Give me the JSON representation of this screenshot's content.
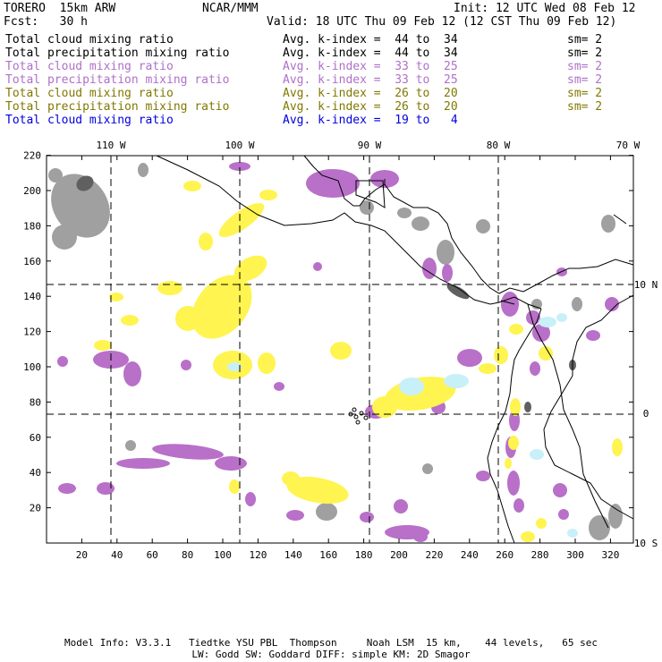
{
  "header": {
    "model": "TORERO  15km ARW",
    "org": "NCAR/MMM",
    "init": "Init: 12 UTC Wed 08 Feb 12",
    "fcst": "Fcst:   30 h",
    "valid": "Valid: 18 UTC Thu 09 Feb 12 (12 CST Thu 09 Feb 12)"
  },
  "legend": [
    {
      "field": "Total cloud mixing ratio",
      "avg": "Avg. k-index =  44 to  34",
      "sm": "sm= 2",
      "color": "#000000"
    },
    {
      "field": "Total precipitation mixing ratio",
      "avg": "Avg. k-index =  44 to  34",
      "sm": "sm= 2",
      "color": "#000000"
    },
    {
      "field": "Total cloud mixing ratio",
      "avg": "Avg. k-index =  33 to  25",
      "sm": "sm= 2",
      "color": "#b070c8"
    },
    {
      "field": "Total precipitation mixing ratio",
      "avg": "Avg. k-index =  33 to  25",
      "sm": "sm= 2",
      "color": "#b070c8"
    },
    {
      "field": "Total cloud mixing ratio",
      "avg": "Avg. k-index =  26 to  20",
      "sm": "sm= 2",
      "color": "#807800"
    },
    {
      "field": "Total precipitation mixing ratio",
      "avg": "Avg. k-index =  26 to  20",
      "sm": "sm= 2",
      "color": "#807800"
    },
    {
      "field": "Total cloud mixing ratio",
      "avg": "Avg. k-index =  19 to   4",
      "sm": "",
      "color": "#0000e0"
    }
  ],
  "map": {
    "lon_labels": [
      "110 W",
      "100 W",
      "90 W",
      "80 W",
      "70 W"
    ],
    "lat_labels": [
      "10 N",
      "0",
      "10 S"
    ],
    "x_ticks": [
      "20",
      "40",
      "60",
      "80",
      "100",
      "120",
      "140",
      "160",
      "180",
      "200",
      "220",
      "240",
      "260",
      "280",
      "300",
      "320"
    ],
    "y_ticks": [
      "20",
      "40",
      "60",
      "80",
      "100",
      "120",
      "140",
      "160",
      "180",
      "200",
      "220"
    ],
    "colors": {
      "gray": "#a0a0a0",
      "dark": "#606060",
      "purple": "#b870c8",
      "yellow": "#fff450",
      "lightblue": "#c8f0f8"
    }
  },
  "footer": {
    "line1": "Model Info: V3.3.1   Tiedtke YSU PBL  Thompson     Noah LSM  15 km,    44 levels,   65 sec",
    "line2": "LW: Godd SW: Goddard DIFF: simple KM: 2D Smagor"
  }
}
